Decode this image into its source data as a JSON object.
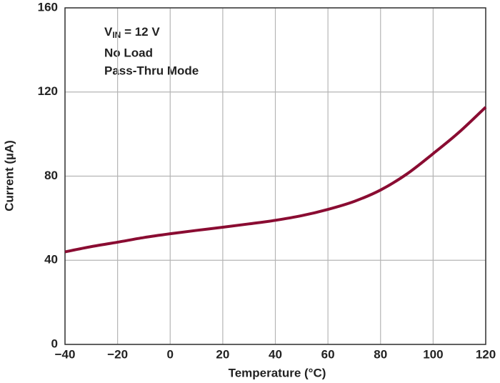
{
  "chart_data": {
    "type": "line",
    "x_label": "Temperature (°C)",
    "y_label": "Current (µA)",
    "annotation": {
      "symbol": "V",
      "subscript": "IN",
      "text": " = 12 V",
      "lines": [
        "No Load",
        "Pass-Thru Mode"
      ]
    },
    "x": [
      -40,
      -30,
      -20,
      -10,
      0,
      10,
      20,
      30,
      40,
      50,
      60,
      70,
      80,
      90,
      100,
      110,
      120
    ],
    "series": [
      {
        "name": "Current",
        "color": "#8a0c32",
        "values": [
          44,
          46.5,
          48.6,
          50.8,
          52.6,
          54.2,
          55.7,
          57.3,
          59,
          61.2,
          64.2,
          68,
          73.4,
          81,
          90.7,
          101,
          112.8
        ]
      }
    ],
    "xlim": [
      -40,
      120
    ],
    "ylim": [
      0,
      160
    ],
    "xticks": [
      {
        "value": -40,
        "label": "−40"
      },
      {
        "value": -20,
        "label": "−20"
      },
      0,
      20,
      40,
      60,
      80,
      100,
      120
    ],
    "yticks": [
      0,
      40,
      80,
      120,
      160
    ],
    "grid": true
  }
}
